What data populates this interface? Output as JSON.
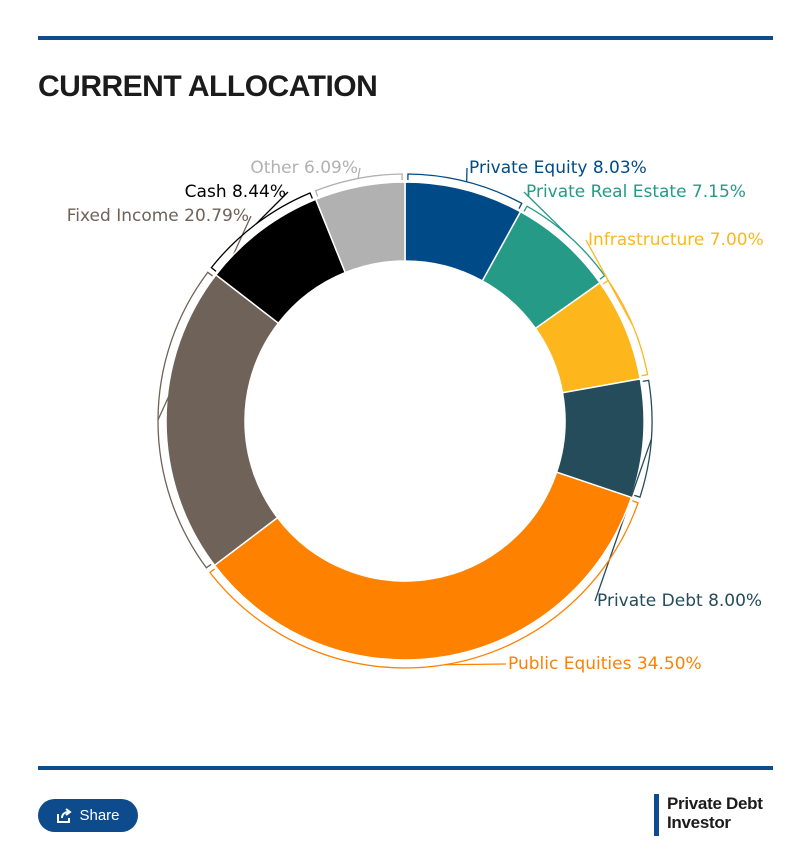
{
  "header": {
    "title": "CURRENT ALLOCATION"
  },
  "footer": {
    "share_label": "Share",
    "share_icon": "share-icon",
    "brand_line1": "Private Debt",
    "brand_line2": "Investor"
  },
  "chart_data": {
    "type": "pie",
    "variant": "donut",
    "title": "CURRENT ALLOCATION",
    "label_format": "{name} {pct}%",
    "slices": [
      {
        "name": "Private Equity",
        "value": 8.03,
        "color": "#004b87"
      },
      {
        "name": "Private Real Estate",
        "value": 7.15,
        "color": "#249a87"
      },
      {
        "name": "Infrastructure",
        "value": 7.0,
        "color": "#fdb71c"
      },
      {
        "name": "Private Debt",
        "value": 8.0,
        "color": "#244c5a"
      },
      {
        "name": "Public Equities",
        "value": 34.5,
        "color": "#fe8100"
      },
      {
        "name": "Fixed Income",
        "value": 20.79,
        "color": "#6e6259"
      },
      {
        "name": "Cash",
        "value": 8.44,
        "color": "#000000"
      },
      {
        "name": "Other",
        "value": 6.09,
        "color": "#b1b1b1"
      }
    ]
  }
}
